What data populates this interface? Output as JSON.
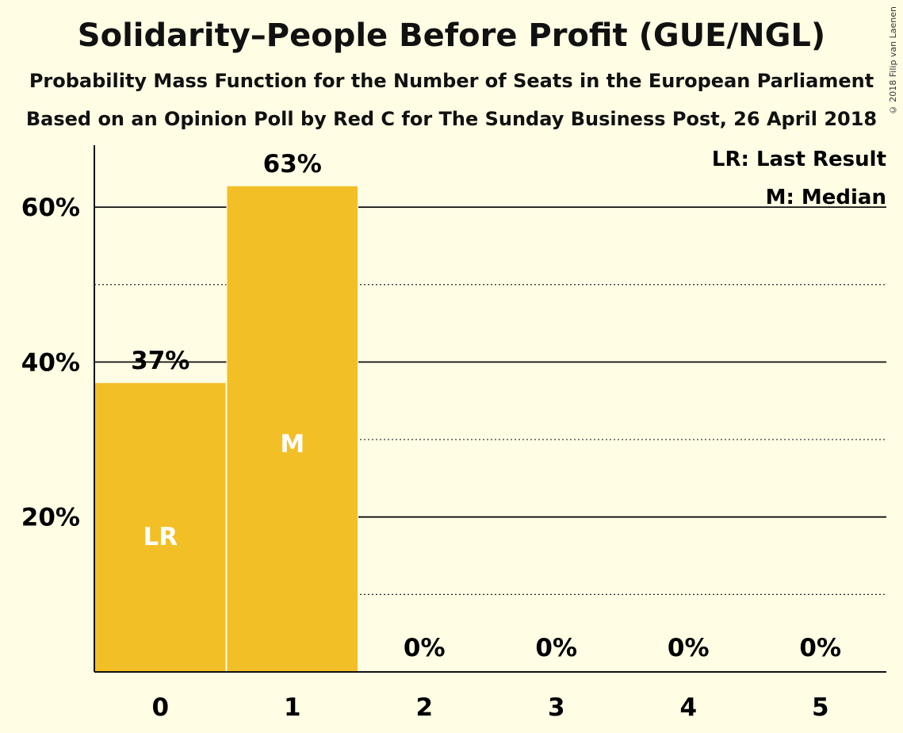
{
  "title": "Solidarity–People Before Profit (GUE/NGL)",
  "subtitle1": "Probability Mass Function for the Number of Seats in the European Parliament",
  "subtitle2": "Based on an Opinion Poll by Red C for The Sunday Business Post, 26 April 2018",
  "copyright": "© 2018 Filip van Laenen",
  "colors": {
    "bar": "#f3bf26",
    "background": "#fffde4",
    "text": "#111111"
  },
  "chart_data": {
    "type": "bar",
    "categories": [
      "0",
      "1",
      "2",
      "3",
      "4",
      "5"
    ],
    "values": [
      37.3,
      62.7,
      0,
      0,
      0,
      0
    ],
    "value_labels": [
      "37%",
      "63%",
      "0%",
      "0%",
      "0%",
      "0%"
    ],
    "bar_markers": [
      "LR",
      "M",
      "",
      "",
      "",
      ""
    ],
    "ylim": [
      0,
      68
    ],
    "y_major_ticks": [
      20,
      40,
      60
    ],
    "y_major_tick_labels": [
      "20%",
      "40%",
      "60%"
    ],
    "y_minor_gridlines": [
      10,
      30,
      50
    ],
    "legend": [
      "LR: Last Result",
      "M: Median"
    ],
    "legend_position": "top-right",
    "grid": true
  }
}
